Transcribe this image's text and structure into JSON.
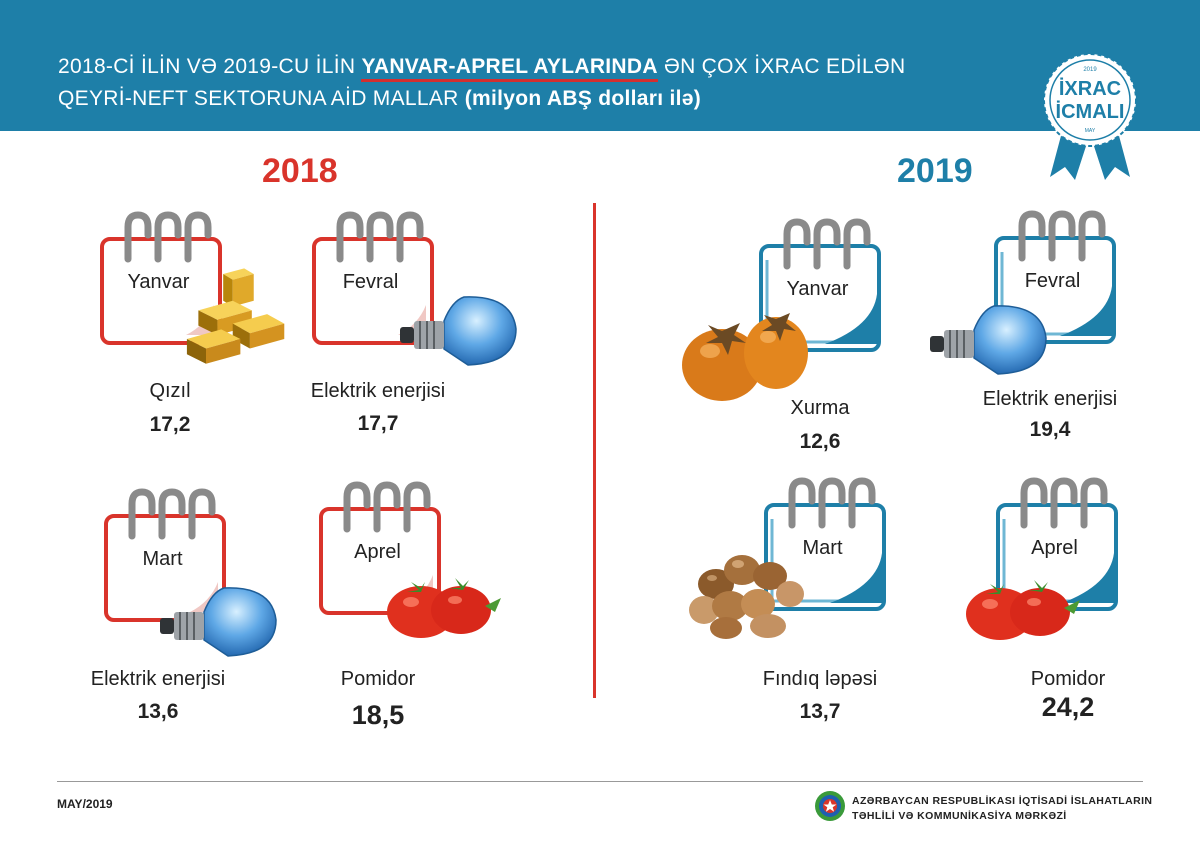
{
  "header": {
    "line1_pre": "2018-Cİ İLİN VƏ 2019-CU İLİN ",
    "line1_highlight": "YANVAR-APREL AYLARINDA",
    "line1_post": " ƏN ÇOX İXRAC EDİLƏN",
    "line2_pre": "QEYRİ-NEFT SEKTORUNA AİD MALLAR ",
    "line2_bold": "(milyon ABŞ dolları ilə)"
  },
  "badge": {
    "year": "2019",
    "line1": "İXRAC",
    "line2": "İCMALI",
    "month": "MAY"
  },
  "colors": {
    "header": "#1e7fa8",
    "accent_2018": "#d9342b",
    "accent_2019": "#1e7fa8"
  },
  "y2018": {
    "year": "2018",
    "items": [
      {
        "month": "Yanvar",
        "product": "Qızıl",
        "value": "17,2",
        "icon": "gold-bars-icon"
      },
      {
        "month": "Fevral",
        "product": "Elektrik enerjisi",
        "value": "17,7",
        "icon": "light-bulb-icon"
      },
      {
        "month": "Mart",
        "product": "Elektrik enerjisi",
        "value": "13,6",
        "icon": "light-bulb-icon"
      },
      {
        "month": "Aprel",
        "product": "Pomidor",
        "value": "18,5",
        "icon": "tomato-icon"
      }
    ]
  },
  "y2019": {
    "year": "2019",
    "items": [
      {
        "month": "Yanvar",
        "product": "Xurma",
        "value": "12,6",
        "icon": "persimmon-icon"
      },
      {
        "month": "Fevral",
        "product": "Elektrik enerjisi",
        "value": "19,4",
        "icon": "light-bulb-icon"
      },
      {
        "month": "Mart",
        "product": "Fındıq ləpəsi",
        "value": "13,7",
        "icon": "hazelnut-icon"
      },
      {
        "month": "Aprel",
        "product": "Pomidor",
        "value": "24,2",
        "icon": "tomato-icon"
      }
    ]
  },
  "footer": {
    "date": "MAY/2019",
    "org_line1": "AZƏRBAYCAN RESPUBLİKASI İQTİSADİ İSLAHATLARIN",
    "org_line2": "TƏHLİLİ VƏ KOMMUNİKASİYA MƏRKƏZİ"
  }
}
